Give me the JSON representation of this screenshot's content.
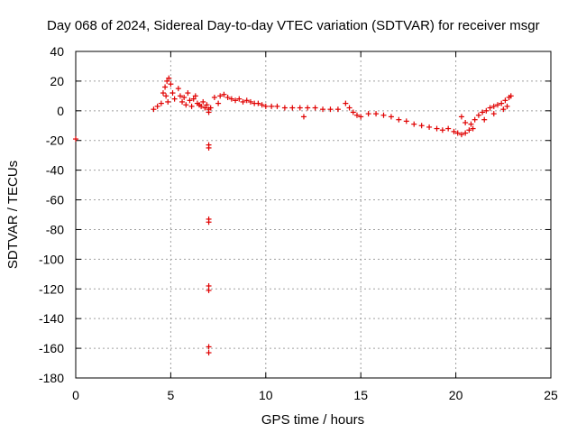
{
  "chart_data": {
    "type": "scatter",
    "title": "Day 068 of 2024, Sidereal Day-to-day VTEC variation (SDTVAR) for receiver msgr",
    "xlabel": "GPS time / hours",
    "ylabel": "SDTVAR / TECUs",
    "xlim": [
      0,
      25
    ],
    "ylim": [
      -180,
      40
    ],
    "x_ticks": [
      0,
      5,
      10,
      15,
      20,
      25
    ],
    "y_ticks": [
      40,
      20,
      0,
      -20,
      -40,
      -60,
      -80,
      -100,
      -120,
      -140,
      -160,
      -180
    ],
    "grid": true,
    "marker": "+",
    "color": "#e00000",
    "series": [
      {
        "name": "SDTVAR",
        "points": [
          [
            0.0,
            -19
          ],
          [
            4.1,
            1
          ],
          [
            4.3,
            3
          ],
          [
            4.5,
            5
          ],
          [
            4.6,
            12
          ],
          [
            4.7,
            16
          ],
          [
            4.8,
            20
          ],
          [
            4.9,
            22
          ],
          [
            5.0,
            18
          ],
          [
            4.75,
            10
          ],
          [
            4.85,
            6
          ],
          [
            5.1,
            12
          ],
          [
            5.2,
            8
          ],
          [
            5.4,
            15
          ],
          [
            5.5,
            10
          ],
          [
            5.6,
            6
          ],
          [
            5.7,
            9
          ],
          [
            5.8,
            4
          ],
          [
            5.9,
            12
          ],
          [
            6.0,
            7
          ],
          [
            6.1,
            3
          ],
          [
            6.2,
            8
          ],
          [
            6.3,
            10
          ],
          [
            6.4,
            5
          ],
          [
            6.5,
            4
          ],
          [
            6.6,
            3
          ],
          [
            6.7,
            6
          ],
          [
            6.8,
            2
          ],
          [
            6.9,
            4
          ],
          [
            7.0,
            1
          ],
          [
            7.0,
            -1
          ],
          [
            7.0,
            -23
          ],
          [
            7.0,
            -25
          ],
          [
            7.0,
            -73
          ],
          [
            7.0,
            -75
          ],
          [
            7.0,
            -118
          ],
          [
            7.0,
            -121
          ],
          [
            7.0,
            -159
          ],
          [
            7.0,
            -163
          ],
          [
            7.1,
            2
          ],
          [
            7.3,
            9
          ],
          [
            7.5,
            5
          ],
          [
            7.6,
            10
          ],
          [
            7.8,
            11
          ],
          [
            8.0,
            9
          ],
          [
            8.2,
            8
          ],
          [
            8.4,
            7
          ],
          [
            8.6,
            8
          ],
          [
            8.8,
            6
          ],
          [
            9.0,
            7
          ],
          [
            9.2,
            6
          ],
          [
            9.4,
            5
          ],
          [
            9.6,
            5
          ],
          [
            9.8,
            4
          ],
          [
            10.0,
            3
          ],
          [
            10.3,
            3
          ],
          [
            10.6,
            3
          ],
          [
            11.0,
            2
          ],
          [
            11.4,
            2
          ],
          [
            11.8,
            2
          ],
          [
            12.0,
            -4
          ],
          [
            12.2,
            2
          ],
          [
            12.6,
            2
          ],
          [
            13.0,
            1
          ],
          [
            13.4,
            1
          ],
          [
            13.8,
            1
          ],
          [
            14.2,
            5
          ],
          [
            14.4,
            2
          ],
          [
            14.6,
            -1
          ],
          [
            14.8,
            -3
          ],
          [
            15.0,
            -4
          ],
          [
            15.4,
            -2
          ],
          [
            15.8,
            -2
          ],
          [
            16.2,
            -3
          ],
          [
            16.6,
            -4
          ],
          [
            17.0,
            -6
          ],
          [
            17.4,
            -7
          ],
          [
            17.8,
            -9
          ],
          [
            18.2,
            -10
          ],
          [
            18.6,
            -11
          ],
          [
            19.0,
            -12
          ],
          [
            19.3,
            -13
          ],
          [
            19.6,
            -12
          ],
          [
            19.9,
            -14
          ],
          [
            20.1,
            -15
          ],
          [
            20.3,
            -16
          ],
          [
            20.5,
            -15
          ],
          [
            20.7,
            -13
          ],
          [
            20.9,
            -12
          ],
          [
            20.3,
            -4
          ],
          [
            20.5,
            -8
          ],
          [
            20.8,
            -9
          ],
          [
            21.0,
            -6
          ],
          [
            21.2,
            -3
          ],
          [
            21.4,
            -1
          ],
          [
            21.6,
            0
          ],
          [
            21.8,
            2
          ],
          [
            22.0,
            3
          ],
          [
            22.2,
            4
          ],
          [
            22.4,
            5
          ],
          [
            22.6,
            7
          ],
          [
            22.8,
            9
          ],
          [
            22.9,
            10
          ],
          [
            22.5,
            1
          ],
          [
            22.7,
            3
          ],
          [
            22.0,
            -2
          ],
          [
            21.5,
            -6
          ]
        ]
      }
    ]
  }
}
